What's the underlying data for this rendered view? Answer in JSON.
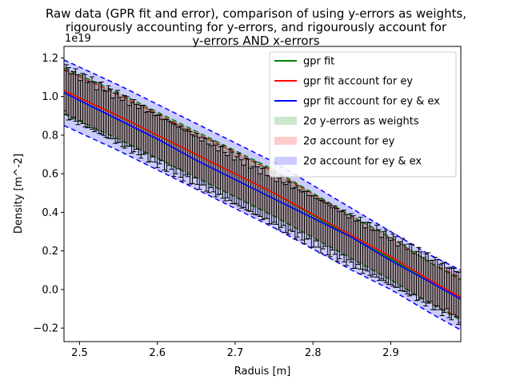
{
  "chart_data": {
    "type": "line",
    "title_lines": [
      "Raw data (GPR fit and error), comparison of using y-errors as weights,",
      "rigourously accounting for y-errors, and rigourously account for",
      "y-errors AND x-errors"
    ],
    "xlabel": "Raduis [m]",
    "ylabel": "Density [m^-2]",
    "y_offset_label": "1e19",
    "xlim": [
      2.48,
      2.99
    ],
    "ylim": [
      -0.27,
      1.26
    ],
    "x_ticks": [
      2.5,
      2.6,
      2.7,
      2.8,
      2.9
    ],
    "x_tick_labels": [
      "2.5",
      "2.6",
      "2.7",
      "2.8",
      "2.9"
    ],
    "y_ticks": [
      -0.2,
      0.0,
      0.2,
      0.4,
      0.6,
      0.8,
      1.0,
      1.2
    ],
    "y_tick_labels": [
      "−0.2",
      "0.0",
      "0.2",
      "0.4",
      "0.6",
      "0.8",
      "1.0",
      "1.2"
    ],
    "legend_position": "top-right",
    "legend": [
      {
        "label": "gpr fit",
        "kind": "line",
        "color": "#008000"
      },
      {
        "label": "gpr fit account for ey",
        "kind": "line",
        "color": "#ff0000"
      },
      {
        "label": "gpr fit account for ey & ex",
        "kind": "line",
        "color": "#0000ff"
      },
      {
        "label": "2σ y-errors as weights",
        "kind": "patch",
        "color": "#008000"
      },
      {
        "label": "2σ account for ey",
        "kind": "patch",
        "color": "#ff0000"
      },
      {
        "label": "2σ account for ey & ex",
        "kind": "patch",
        "color": "#0000ff"
      }
    ],
    "series": [
      {
        "name": "gpr fit",
        "color": "#008000",
        "x": [
          2.48,
          2.55,
          2.65,
          2.75,
          2.85,
          2.9,
          2.95,
          2.99
        ],
        "y": [
          1.03,
          0.9,
          0.7,
          0.5,
          0.27,
          0.16,
          0.04,
          -0.05
        ]
      },
      {
        "name": "gpr fit account for ey",
        "color": "#ff0000",
        "x": [
          2.48,
          2.55,
          2.65,
          2.75,
          2.85,
          2.9,
          2.95,
          2.99
        ],
        "y": [
          1.03,
          0.9,
          0.7,
          0.5,
          0.28,
          0.17,
          0.05,
          -0.04
        ]
      },
      {
        "name": "gpr fit account for ey & ex",
        "color": "#0000ff",
        "x": [
          2.48,
          2.5,
          2.55,
          2.6,
          2.65,
          2.7,
          2.75,
          2.8,
          2.85,
          2.9,
          2.95,
          2.99
        ],
        "y": [
          1.02,
          0.98,
          0.88,
          0.78,
          0.67,
          0.57,
          0.47,
          0.37,
          0.27,
          0.15,
          0.04,
          -0.05
        ]
      }
    ],
    "bands": [
      {
        "name": "2σ account for ey & ex",
        "color": "#0000ff",
        "x": [
          2.48,
          2.55,
          2.65,
          2.75,
          2.85,
          2.9,
          2.95,
          2.99
        ],
        "upper": [
          1.19,
          1.06,
          0.86,
          0.66,
          0.42,
          0.3,
          0.18,
          0.1
        ],
        "lower": [
          0.85,
          0.72,
          0.52,
          0.32,
          0.1,
          0.0,
          -0.12,
          -0.21
        ]
      },
      {
        "name": "2σ account for ey",
        "color": "#ff0000",
        "x": [
          2.48,
          2.55,
          2.65,
          2.75,
          2.85,
          2.9,
          2.95,
          2.99
        ],
        "upper": [
          1.14,
          1.01,
          0.81,
          0.61,
          0.38,
          0.27,
          0.14,
          0.06
        ],
        "lower": [
          0.91,
          0.78,
          0.58,
          0.38,
          0.16,
          0.05,
          -0.07,
          -0.15
        ]
      },
      {
        "name": "2σ y-errors as weights",
        "color": "#008000",
        "x": [
          2.48,
          2.55,
          2.65,
          2.75,
          2.85,
          2.9,
          2.95,
          2.99
        ],
        "upper": [
          1.15,
          1.02,
          0.82,
          0.62,
          0.38,
          0.27,
          0.14,
          0.05
        ],
        "lower": [
          0.91,
          0.78,
          0.58,
          0.38,
          0.16,
          0.05,
          -0.07,
          -0.16
        ]
      }
    ],
    "errorbar_data": {
      "color": "#000000",
      "x": [
        2.48,
        2.99
      ],
      "center": [
        1.03,
        -0.04
      ],
      "half_width": 0.13
    },
    "grid": false
  }
}
